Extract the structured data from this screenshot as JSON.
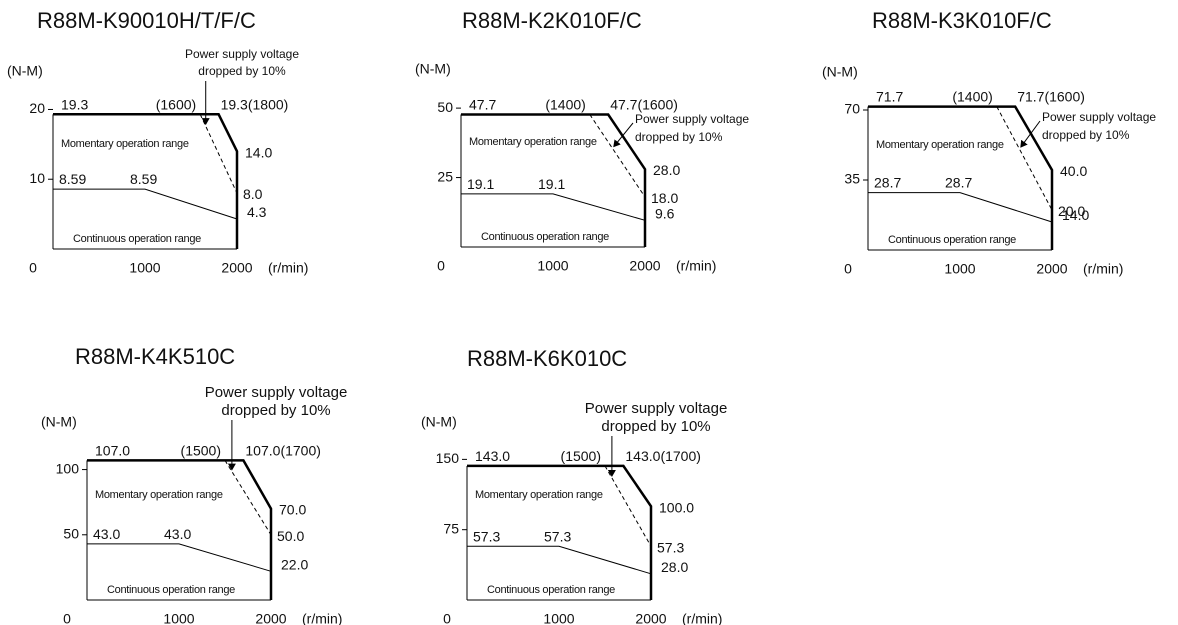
{
  "chart_data": [
    {
      "type": "line",
      "title": "R88M-K90010H/T/F/C",
      "y_label": "(N-M)",
      "x_label": "(r/min)",
      "xlim": [
        0,
        2000
      ],
      "ylim": [
        0,
        21.5
      ],
      "xticks": [
        0,
        1000,
        2000
      ],
      "yticks": [
        10,
        20
      ],
      "voltage_note": [
        "Power supply voltage",
        "dropped by 10%"
      ],
      "momentary_label": "Momentary operation range",
      "continuous_label": "Continuous operation range",
      "series": [
        {
          "style": "thick",
          "color": "#000000",
          "x": [
            0,
            1800,
            2000,
            2000
          ],
          "values": [
            19.3,
            19.3,
            14,
            0
          ],
          "value_labels": [
            "19.3",
            "19.3",
            "14.0",
            null
          ],
          "x_labels": [
            null,
            "(1800)",
            null,
            null
          ]
        },
        {
          "style": "dashed",
          "color": "#000000",
          "x": [
            1600,
            2000
          ],
          "values": [
            19.3,
            8
          ],
          "value_labels": [
            null,
            "8.0"
          ],
          "x_labels": [
            "(1600)",
            null
          ]
        },
        {
          "style": "thin",
          "color": "#000000",
          "x": [
            0,
            1000,
            2000
          ],
          "values": [
            8.59,
            8.59,
            4.3
          ],
          "value_labels": [
            "8.59",
            "8.59",
            "4.3"
          ],
          "x_labels": [
            null,
            null,
            null
          ]
        }
      ]
    },
    {
      "type": "line",
      "title": "R88M-K2K010F/C",
      "y_label": "(N-M)",
      "x_label": "(r/min)",
      "xlim": [
        0,
        2000
      ],
      "ylim": [
        0,
        54
      ],
      "xticks": [
        0,
        1000,
        2000
      ],
      "yticks": [
        25,
        50
      ],
      "voltage_note": [
        "Power supply voltage",
        "dropped by 10%"
      ],
      "momentary_label": "Momentary operation range",
      "continuous_label": "Continuous operation range",
      "series": [
        {
          "style": "thick",
          "color": "#000000",
          "x": [
            0,
            1600,
            2000,
            2000
          ],
          "values": [
            47.7,
            47.7,
            28,
            0
          ],
          "value_labels": [
            "47.7",
            "47.7",
            "28.0",
            null
          ],
          "x_labels": [
            null,
            "(1600)",
            null,
            null
          ]
        },
        {
          "style": "dashed",
          "color": "#000000",
          "x": [
            1400,
            2000
          ],
          "values": [
            47.7,
            18
          ],
          "value_labels": [
            null,
            "18.0"
          ],
          "x_labels": [
            "(1400)",
            null
          ]
        },
        {
          "style": "thin",
          "color": "#000000",
          "x": [
            0,
            1000,
            2000
          ],
          "values": [
            19.1,
            19.1,
            9.6
          ],
          "value_labels": [
            "19.1",
            "19.1",
            "9.6"
          ],
          "x_labels": [
            null,
            null,
            null
          ]
        }
      ]
    },
    {
      "type": "line",
      "title": "R88M-K3K010F/C",
      "y_label": "(N-M)",
      "x_label": "(r/min)",
      "xlim": [
        0,
        2000
      ],
      "ylim": [
        0,
        75
      ],
      "xticks": [
        0,
        1000,
        2000
      ],
      "yticks": [
        35,
        70
      ],
      "voltage_note": [
        "Power supply voltage",
        "dropped by 10%"
      ],
      "momentary_label": "Momentary operation range",
      "continuous_label": "Continuous operation range",
      "series": [
        {
          "style": "thick",
          "color": "#000000",
          "x": [
            0,
            1600,
            2000,
            2000
          ],
          "values": [
            71.7,
            71.7,
            40,
            0
          ],
          "value_labels": [
            "71.7",
            "71.7",
            "40.0",
            null
          ],
          "x_labels": [
            null,
            "(1600)",
            null,
            null
          ]
        },
        {
          "style": "dashed",
          "color": "#000000",
          "x": [
            1400,
            2000
          ],
          "values": [
            71.7,
            20
          ],
          "value_labels": [
            null,
            "20.0"
          ],
          "x_labels": [
            "(1400)",
            null
          ]
        },
        {
          "style": "thin",
          "color": "#000000",
          "x": [
            0,
            1000,
            2000
          ],
          "values": [
            28.7,
            28.7,
            14
          ],
          "value_labels": [
            "28.7",
            "28.7",
            "14.0"
          ],
          "x_labels": [
            null,
            null,
            null
          ]
        }
      ]
    },
    {
      "type": "line",
      "title": "R88M-K4K510C",
      "y_label": "(N-M)",
      "x_label": "(r/min)",
      "xlim": [
        0,
        2000
      ],
      "ylim": [
        0,
        115
      ],
      "xticks": [
        0,
        1000,
        2000
      ],
      "yticks": [
        50,
        100
      ],
      "voltage_note": [
        "Power supply voltage",
        "dropped by 10%"
      ],
      "momentary_label": "Momentary operation range",
      "continuous_label": "Continuous operation range",
      "series": [
        {
          "style": "thick",
          "color": "#000000",
          "x": [
            0,
            1700,
            2000,
            2000
          ],
          "values": [
            107,
            107,
            70,
            0
          ],
          "value_labels": [
            "107.0",
            "107.0",
            "70.0",
            null
          ],
          "x_labels": [
            null,
            "(1700)",
            null,
            null
          ]
        },
        {
          "style": "dashed",
          "color": "#000000",
          "x": [
            1500,
            2000
          ],
          "values": [
            107,
            50
          ],
          "value_labels": [
            null,
            "50.0"
          ],
          "x_labels": [
            "(1500)",
            null
          ]
        },
        {
          "style": "thin",
          "color": "#000000",
          "x": [
            0,
            1000,
            2000
          ],
          "values": [
            43,
            43,
            22
          ],
          "value_labels": [
            "43.0",
            "43.0",
            "22.0"
          ],
          "x_labels": [
            null,
            null,
            null
          ]
        }
      ]
    },
    {
      "type": "line",
      "title": "R88M-K6K010C",
      "y_label": "(N-M)",
      "x_label": "(r/min)",
      "xlim": [
        0,
        2000
      ],
      "ylim": [
        0,
        160
      ],
      "xticks": [
        0,
        1000,
        2000
      ],
      "yticks": [
        75,
        150
      ],
      "voltage_note": [
        "Power supply voltage",
        "dropped by 10%"
      ],
      "momentary_label": "Momentary operation range",
      "continuous_label": "Continuous operation range",
      "series": [
        {
          "style": "thick",
          "color": "#000000",
          "x": [
            0,
            1700,
            2000,
            2000
          ],
          "values": [
            143,
            143,
            100,
            0
          ],
          "value_labels": [
            "143.0",
            "143.0",
            "100.0",
            null
          ],
          "x_labels": [
            null,
            "(1700)",
            null,
            null
          ]
        },
        {
          "style": "dashed",
          "color": "#000000",
          "x": [
            1500,
            2000
          ],
          "values": [
            143,
            57.3
          ],
          "value_labels": [
            null,
            "57.3"
          ],
          "x_labels": [
            "(1500)",
            null
          ]
        },
        {
          "style": "thin",
          "color": "#000000",
          "x": [
            0,
            1000,
            2000
          ],
          "values": [
            57.3,
            57.3,
            28
          ],
          "value_labels": [
            "57.3",
            "57.3",
            "28.0"
          ],
          "x_labels": [
            null,
            null,
            null
          ]
        }
      ]
    }
  ]
}
